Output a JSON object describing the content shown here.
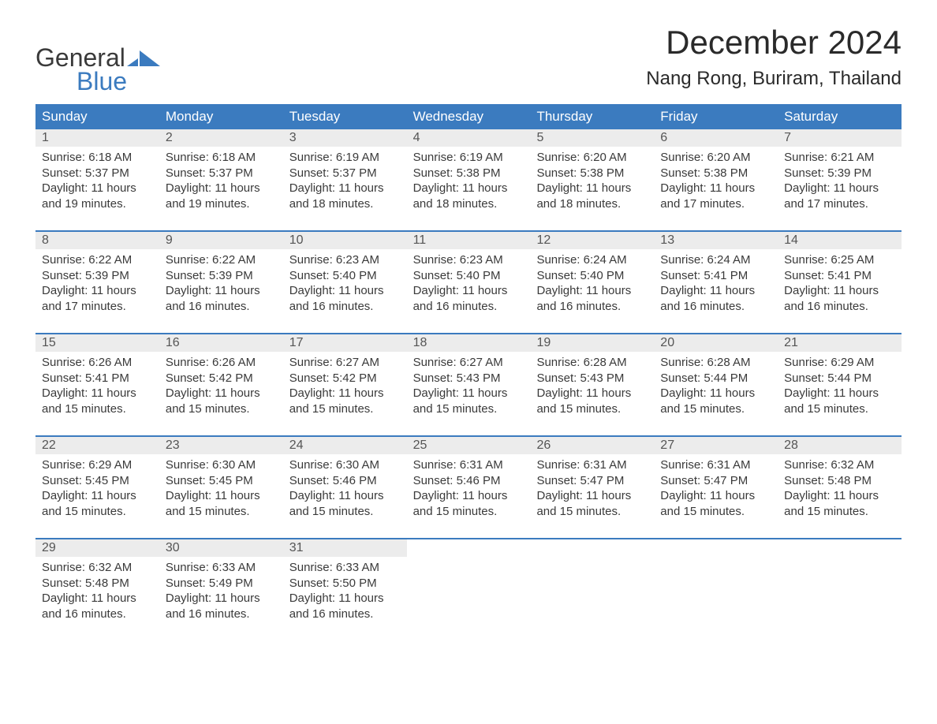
{
  "logo": {
    "word1": "General",
    "word2": "Blue"
  },
  "title": "December 2024",
  "location": "Nang Rong, Buriram, Thailand",
  "colors": {
    "header_bg": "#3b7bbf",
    "header_text": "#ffffff",
    "daynum_bg": "#ececec",
    "body_text": "#3a3a3a",
    "week_border": "#3b7bbf",
    "logo_blue": "#3b7bbf"
  },
  "day_headers": [
    "Sunday",
    "Monday",
    "Tuesday",
    "Wednesday",
    "Thursday",
    "Friday",
    "Saturday"
  ],
  "weeks": [
    [
      {
        "n": "1",
        "sr": "Sunrise: 6:18 AM",
        "ss": "Sunset: 5:37 PM",
        "d1": "Daylight: 11 hours",
        "d2": "and 19 minutes."
      },
      {
        "n": "2",
        "sr": "Sunrise: 6:18 AM",
        "ss": "Sunset: 5:37 PM",
        "d1": "Daylight: 11 hours",
        "d2": "and 19 minutes."
      },
      {
        "n": "3",
        "sr": "Sunrise: 6:19 AM",
        "ss": "Sunset: 5:37 PM",
        "d1": "Daylight: 11 hours",
        "d2": "and 18 minutes."
      },
      {
        "n": "4",
        "sr": "Sunrise: 6:19 AM",
        "ss": "Sunset: 5:38 PM",
        "d1": "Daylight: 11 hours",
        "d2": "and 18 minutes."
      },
      {
        "n": "5",
        "sr": "Sunrise: 6:20 AM",
        "ss": "Sunset: 5:38 PM",
        "d1": "Daylight: 11 hours",
        "d2": "and 18 minutes."
      },
      {
        "n": "6",
        "sr": "Sunrise: 6:20 AM",
        "ss": "Sunset: 5:38 PM",
        "d1": "Daylight: 11 hours",
        "d2": "and 17 minutes."
      },
      {
        "n": "7",
        "sr": "Sunrise: 6:21 AM",
        "ss": "Sunset: 5:39 PM",
        "d1": "Daylight: 11 hours",
        "d2": "and 17 minutes."
      }
    ],
    [
      {
        "n": "8",
        "sr": "Sunrise: 6:22 AM",
        "ss": "Sunset: 5:39 PM",
        "d1": "Daylight: 11 hours",
        "d2": "and 17 minutes."
      },
      {
        "n": "9",
        "sr": "Sunrise: 6:22 AM",
        "ss": "Sunset: 5:39 PM",
        "d1": "Daylight: 11 hours",
        "d2": "and 16 minutes."
      },
      {
        "n": "10",
        "sr": "Sunrise: 6:23 AM",
        "ss": "Sunset: 5:40 PM",
        "d1": "Daylight: 11 hours",
        "d2": "and 16 minutes."
      },
      {
        "n": "11",
        "sr": "Sunrise: 6:23 AM",
        "ss": "Sunset: 5:40 PM",
        "d1": "Daylight: 11 hours",
        "d2": "and 16 minutes."
      },
      {
        "n": "12",
        "sr": "Sunrise: 6:24 AM",
        "ss": "Sunset: 5:40 PM",
        "d1": "Daylight: 11 hours",
        "d2": "and 16 minutes."
      },
      {
        "n": "13",
        "sr": "Sunrise: 6:24 AM",
        "ss": "Sunset: 5:41 PM",
        "d1": "Daylight: 11 hours",
        "d2": "and 16 minutes."
      },
      {
        "n": "14",
        "sr": "Sunrise: 6:25 AM",
        "ss": "Sunset: 5:41 PM",
        "d1": "Daylight: 11 hours",
        "d2": "and 16 minutes."
      }
    ],
    [
      {
        "n": "15",
        "sr": "Sunrise: 6:26 AM",
        "ss": "Sunset: 5:41 PM",
        "d1": "Daylight: 11 hours",
        "d2": "and 15 minutes."
      },
      {
        "n": "16",
        "sr": "Sunrise: 6:26 AM",
        "ss": "Sunset: 5:42 PM",
        "d1": "Daylight: 11 hours",
        "d2": "and 15 minutes."
      },
      {
        "n": "17",
        "sr": "Sunrise: 6:27 AM",
        "ss": "Sunset: 5:42 PM",
        "d1": "Daylight: 11 hours",
        "d2": "and 15 minutes."
      },
      {
        "n": "18",
        "sr": "Sunrise: 6:27 AM",
        "ss": "Sunset: 5:43 PM",
        "d1": "Daylight: 11 hours",
        "d2": "and 15 minutes."
      },
      {
        "n": "19",
        "sr": "Sunrise: 6:28 AM",
        "ss": "Sunset: 5:43 PM",
        "d1": "Daylight: 11 hours",
        "d2": "and 15 minutes."
      },
      {
        "n": "20",
        "sr": "Sunrise: 6:28 AM",
        "ss": "Sunset: 5:44 PM",
        "d1": "Daylight: 11 hours",
        "d2": "and 15 minutes."
      },
      {
        "n": "21",
        "sr": "Sunrise: 6:29 AM",
        "ss": "Sunset: 5:44 PM",
        "d1": "Daylight: 11 hours",
        "d2": "and 15 minutes."
      }
    ],
    [
      {
        "n": "22",
        "sr": "Sunrise: 6:29 AM",
        "ss": "Sunset: 5:45 PM",
        "d1": "Daylight: 11 hours",
        "d2": "and 15 minutes."
      },
      {
        "n": "23",
        "sr": "Sunrise: 6:30 AM",
        "ss": "Sunset: 5:45 PM",
        "d1": "Daylight: 11 hours",
        "d2": "and 15 minutes."
      },
      {
        "n": "24",
        "sr": "Sunrise: 6:30 AM",
        "ss": "Sunset: 5:46 PM",
        "d1": "Daylight: 11 hours",
        "d2": "and 15 minutes."
      },
      {
        "n": "25",
        "sr": "Sunrise: 6:31 AM",
        "ss": "Sunset: 5:46 PM",
        "d1": "Daylight: 11 hours",
        "d2": "and 15 minutes."
      },
      {
        "n": "26",
        "sr": "Sunrise: 6:31 AM",
        "ss": "Sunset: 5:47 PM",
        "d1": "Daylight: 11 hours",
        "d2": "and 15 minutes."
      },
      {
        "n": "27",
        "sr": "Sunrise: 6:31 AM",
        "ss": "Sunset: 5:47 PM",
        "d1": "Daylight: 11 hours",
        "d2": "and 15 minutes."
      },
      {
        "n": "28",
        "sr": "Sunrise: 6:32 AM",
        "ss": "Sunset: 5:48 PM",
        "d1": "Daylight: 11 hours",
        "d2": "and 15 minutes."
      }
    ],
    [
      {
        "n": "29",
        "sr": "Sunrise: 6:32 AM",
        "ss": "Sunset: 5:48 PM",
        "d1": "Daylight: 11 hours",
        "d2": "and 16 minutes."
      },
      {
        "n": "30",
        "sr": "Sunrise: 6:33 AM",
        "ss": "Sunset: 5:49 PM",
        "d1": "Daylight: 11 hours",
        "d2": "and 16 minutes."
      },
      {
        "n": "31",
        "sr": "Sunrise: 6:33 AM",
        "ss": "Sunset: 5:50 PM",
        "d1": "Daylight: 11 hours",
        "d2": "and 16 minutes."
      },
      null,
      null,
      null,
      null
    ]
  ]
}
